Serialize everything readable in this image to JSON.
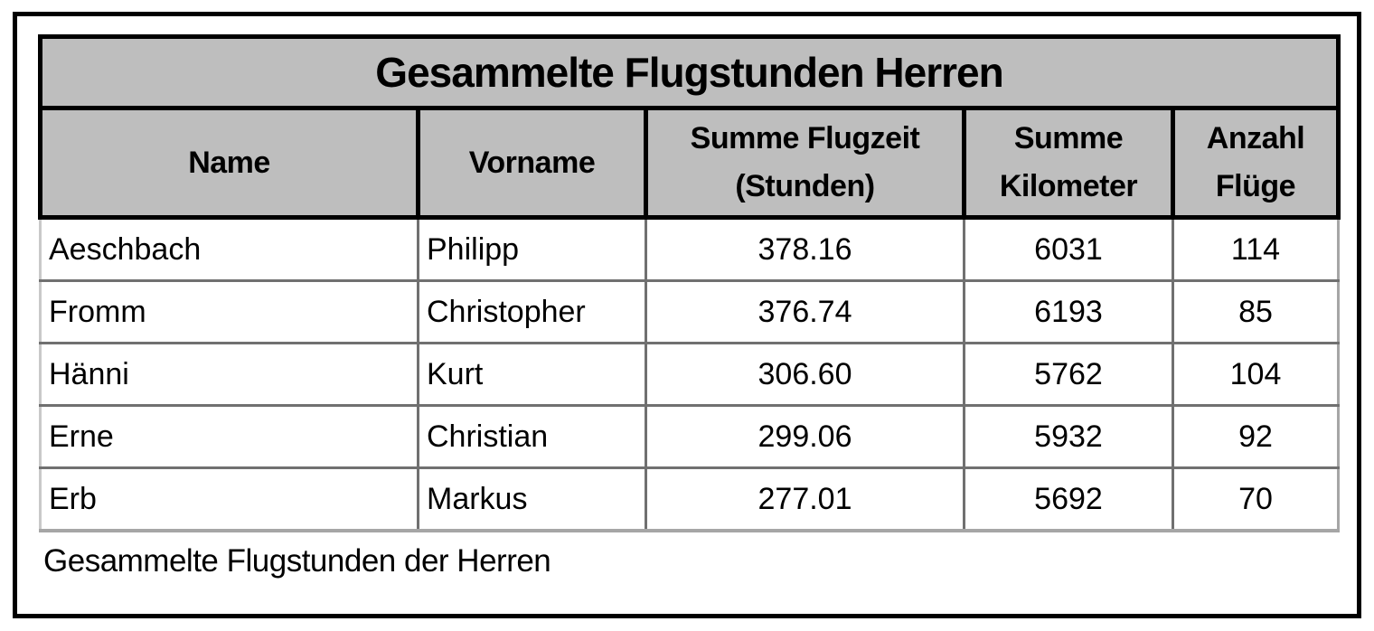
{
  "table": {
    "title": "Gesammelte Flugstunden Herren",
    "columns": [
      "Name",
      "Vorname",
      "Summe Flugzeit\n(Stunden)",
      "Summe\nKilometer",
      "Anzahl\nFlüge"
    ],
    "rows": [
      [
        "Aeschbach",
        "Philipp",
        "378.16",
        "6031",
        "114"
      ],
      [
        "Fromm",
        "Christopher",
        "376.74",
        "6193",
        "85"
      ],
      [
        "Hänni",
        "Kurt",
        "306.60",
        "5762",
        "104"
      ],
      [
        "Erne",
        "Christian",
        "299.06",
        "5932",
        "92"
      ],
      [
        "Erb",
        "Markus",
        "277.01",
        "5692",
        "70"
      ]
    ],
    "caption": "Gesammelte Flugstunden der Herren"
  },
  "colors": {
    "header_fill": "#bebebe",
    "header_border": "#000000",
    "grid_line": "#707070",
    "outer_frame": "#000000",
    "text": "#000000",
    "cell_background": "#ffffff"
  }
}
